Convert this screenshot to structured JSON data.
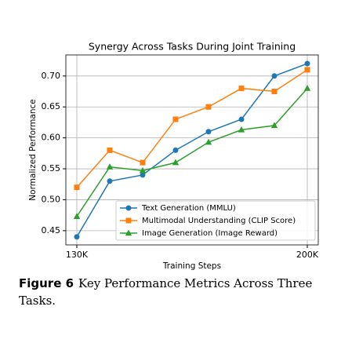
{
  "chart_data": {
    "type": "line",
    "title": "Synergy Across Tasks During Joint Training",
    "x_label": "Training Steps",
    "y_label": "Normalized Performance",
    "x": [
      130000,
      140000,
      150000,
      160000,
      170000,
      180000,
      190000,
      200000
    ],
    "series": [
      {
        "name": "Text Generation (MMLU)",
        "color": "#1f77b4",
        "marker": "circle",
        "values": [
          0.44,
          0.53,
          0.54,
          0.58,
          0.61,
          0.63,
          0.7,
          0.72
        ]
      },
      {
        "name": "Multimodal Understanding (CLIP Score)",
        "color": "#ff7f0e",
        "marker": "square",
        "values": [
          0.52,
          0.58,
          0.56,
          0.63,
          0.65,
          0.68,
          0.675,
          0.71
        ]
      },
      {
        "name": "Image Generation (Image Reward)",
        "color": "#2ca02c",
        "marker": "triangle",
        "values": [
          0.473,
          0.553,
          0.547,
          0.56,
          0.593,
          0.613,
          0.62,
          0.68
        ]
      }
    ],
    "xlim": [
      126667,
      203333
    ],
    "xticks": [
      {
        "value": 130000,
        "label": "130K"
      },
      {
        "value": 200000,
        "label": "200K"
      }
    ],
    "ylim": [
      0.427,
      0.734
    ],
    "yticks": [
      0.45,
      {
        "value": 0.5,
        "label": "0.50"
      },
      0.55,
      {
        "value": 0.6,
        "label": "0.60"
      },
      0.65,
      {
        "value": 0.7,
        "label": "0.70"
      }
    ],
    "grid": true,
    "legend": "lower right"
  },
  "figure_caption": {
    "label": "Figure 6",
    "text": "Key Performance Metrics Across Three Tasks."
  }
}
